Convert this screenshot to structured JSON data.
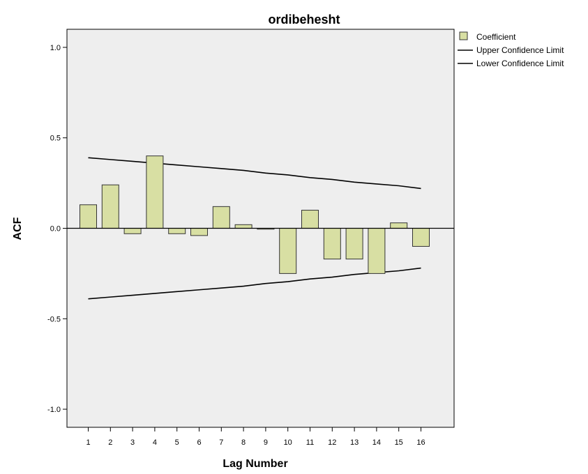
{
  "chart_data": {
    "type": "bar",
    "title": "ordibehesht",
    "xlabel": "Lag Number",
    "ylabel": "ACF",
    "ylim": [
      -1.1,
      1.1
    ],
    "yticks": [
      1.0,
      0.5,
      0.0,
      -0.5,
      -1.0
    ],
    "ytick_labels": [
      "1.0",
      "0.5",
      "0.0",
      "-0.5",
      "-1.0"
    ],
    "categories": [
      "1",
      "2",
      "3",
      "4",
      "5",
      "6",
      "7",
      "8",
      "9",
      "10",
      "11",
      "12",
      "13",
      "14",
      "15",
      "16"
    ],
    "series": [
      {
        "name": "Coefficient",
        "values": [
          0.13,
          0.24,
          -0.03,
          0.4,
          -0.03,
          -0.04,
          0.12,
          0.02,
          -0.005,
          -0.25,
          0.1,
          -0.17,
          -0.17,
          -0.25,
          0.03,
          -0.1
        ]
      },
      {
        "name": "Upper Confidence Limit",
        "values": [
          0.39,
          0.38,
          0.37,
          0.36,
          0.35,
          0.34,
          0.33,
          0.32,
          0.305,
          0.295,
          0.28,
          0.27,
          0.255,
          0.245,
          0.235,
          0.22
        ]
      },
      {
        "name": "Lower Confidence Limit",
        "values": [
          -0.39,
          -0.38,
          -0.37,
          -0.36,
          -0.35,
          -0.34,
          -0.33,
          -0.32,
          -0.305,
          -0.295,
          -0.28,
          -0.27,
          -0.255,
          -0.245,
          -0.235,
          -0.22
        ]
      }
    ],
    "legend": {
      "placement": "top-right",
      "entries": [
        "Coefficient",
        "Upper Confidence Limit",
        "Lower Confidence Limit"
      ]
    },
    "grid": false,
    "colors": {
      "bar_fill": "#d8dfa3",
      "bar_stroke": "#333333",
      "line": "#000000",
      "plot_background": "#eeeeee"
    }
  }
}
